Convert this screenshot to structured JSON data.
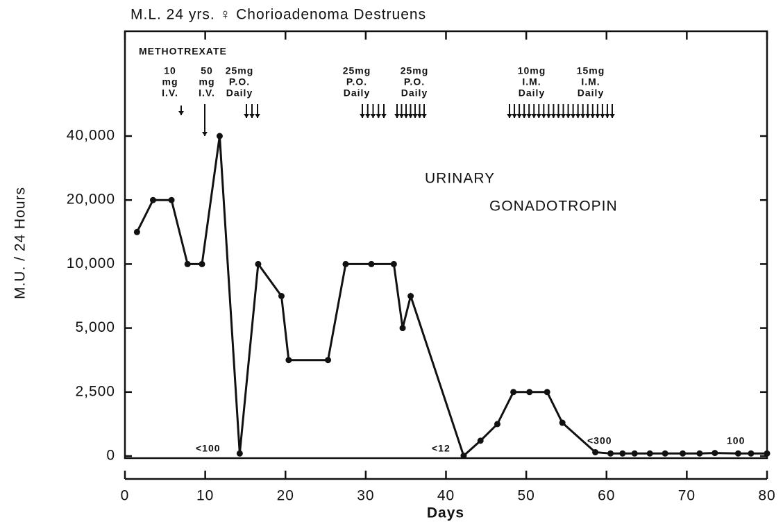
{
  "chart_data": {
    "type": "line",
    "title": "M.L. 24 yrs. ♀ Chorioadenoma  Destruens",
    "xlabel": "Days",
    "ylabel": "M.U. / 24 Hours",
    "x": [
      1.5,
      3.5,
      5.8,
      7.8,
      9.6,
      11.8,
      14.3,
      16.6,
      19.5,
      20.4,
      25.3,
      27.5,
      30.7,
      33.5,
      34.6,
      35.6,
      42.2,
      44.3,
      46.4,
      48.4,
      50.4,
      52.6,
      54.5,
      58.6,
      60.5,
      62,
      63.5,
      65.4,
      67.3,
      69.5,
      71.6,
      73.5,
      76.4,
      78,
      80
    ],
    "series": [
      {
        "name": "URINARY GONADOTROPIN",
        "color": "#111111",
        "values": [
          15000,
          20000,
          20000,
          10000,
          10000,
          40000,
          100,
          10000,
          7500,
          3750,
          3750,
          10000,
          10000,
          10000,
          5000,
          7500,
          12,
          600,
          1250,
          2500,
          2500,
          2500,
          1300,
          150,
          100,
          100,
          100,
          100,
          100,
          100,
          100,
          120,
          100,
          100,
          100
        ]
      }
    ],
    "xlim": [
      0,
      80
    ],
    "xticks": [
      0,
      10,
      20,
      30,
      40,
      50,
      60,
      70,
      80
    ],
    "ylim": [
      0,
      40000
    ],
    "yticks": [
      0,
      {
        "value": 2500,
        "label": "2,500"
      },
      {
        "value": 5000,
        "label": "5,000"
      },
      {
        "value": 10000,
        "label": "10,000"
      },
      {
        "value": 20000,
        "label": "20,000"
      },
      {
        "value": 40000,
        "label": "40,000"
      }
    ],
    "annotations": [
      {
        "text": "METHOTREXATE"
      },
      {
        "lines": [
          "10",
          "mg",
          "I.V."
        ]
      },
      {
        "lines": [
          "50",
          "mg",
          "I.V."
        ]
      },
      {
        "lines": [
          "25mg",
          "P.O.",
          "Daily"
        ]
      },
      {
        "lines": [
          "25mg",
          "P.O.",
          "Daily"
        ]
      },
      {
        "lines": [
          "25mg",
          "P.O.",
          "Daily"
        ]
      },
      {
        "lines": [
          "10mg",
          "I.M.",
          "Daily"
        ]
      },
      {
        "lines": [
          "15mg",
          "I.M.",
          "Daily"
        ]
      },
      {
        "text": "URINARY"
      },
      {
        "text": "GONADOTROPIN"
      },
      {
        "text": "<100"
      },
      {
        "text": "<12"
      },
      {
        "text": "<300"
      },
      {
        "text": "100"
      }
    ]
  }
}
